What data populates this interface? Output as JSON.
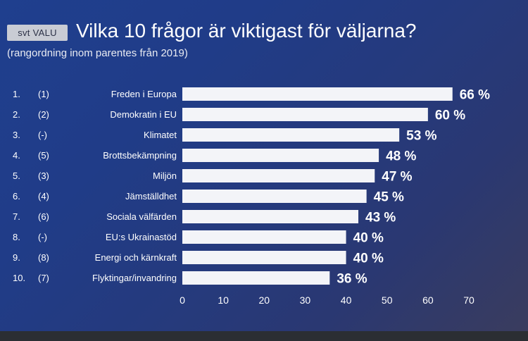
{
  "header": {
    "logo": "svt VALU",
    "title": "Vilka 10 frågor är viktigast för väljarna?",
    "subtitle": "(rangordning inom parentes från 2019)"
  },
  "colors": {
    "bar": "#f3f4f8",
    "background": "#203c88",
    "text": "#ffffff"
  },
  "chart_data": {
    "type": "bar",
    "orientation": "horizontal",
    "ranks": [
      "1.",
      "2.",
      "3.",
      "4.",
      "5.",
      "6.",
      "7.",
      "8.",
      "9.",
      "10."
    ],
    "previous_ranks": [
      "(1)",
      "(2)",
      "(-)",
      "(5)",
      "(3)",
      "(4)",
      "(6)",
      "(-)",
      "(8)",
      "(7)"
    ],
    "categories": [
      "Freden i Europa",
      "Demokratin i EU",
      "Klimatet",
      "Brottsbekämpning",
      "Miljön",
      "Jämställdhet",
      "Sociala välfärden",
      "EU:s Ukrainastöd",
      "Energi och kärnkraft",
      "Flyktingar/invandring"
    ],
    "values": [
      66,
      60,
      53,
      48,
      47,
      45,
      43,
      40,
      40,
      36
    ],
    "value_labels": [
      "66 %",
      "60 %",
      "53 %",
      "48 %",
      "47 %",
      "45 %",
      "43 %",
      "40 %",
      "40 %",
      "36 %"
    ],
    "x_ticks": [
      "0",
      "10",
      "20",
      "30",
      "40",
      "50",
      "60",
      "70"
    ],
    "xlim": [
      0,
      70
    ],
    "grid": false,
    "legend": "none"
  }
}
